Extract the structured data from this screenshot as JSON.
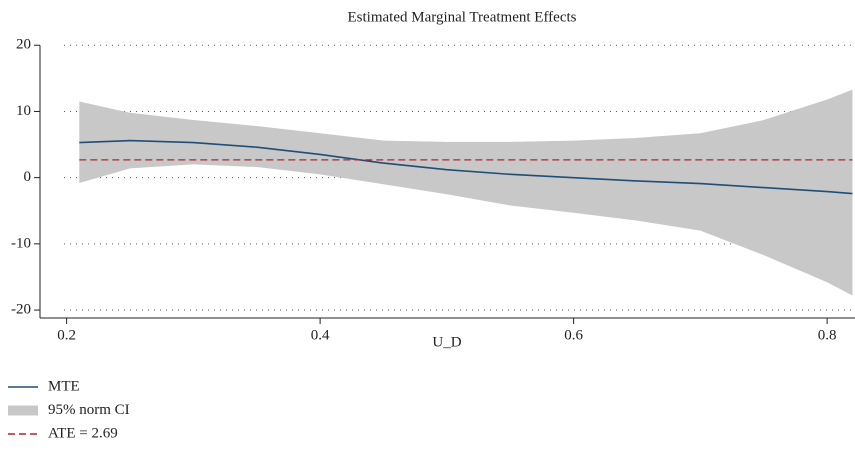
{
  "chart_data": {
    "type": "line",
    "title": "Estimated Marginal Treatment Effects",
    "x_label": "U_D",
    "x": [
      0.21,
      0.25,
      0.3,
      0.35,
      0.4,
      0.45,
      0.5,
      0.55,
      0.6,
      0.65,
      0.7,
      0.75,
      0.8,
      0.82
    ],
    "series": [
      {
        "name": "MTE",
        "color": "#1f4e79",
        "values": [
          5.3,
          5.6,
          5.3,
          4.6,
          3.5,
          2.2,
          1.2,
          0.5,
          0,
          -0.5,
          -0.9,
          -1.5,
          -2.1,
          -2.4
        ]
      },
      {
        "name": "95% norm CI",
        "color": "#c8c8c8",
        "upper": [
          11.5,
          9.8,
          8.7,
          7.8,
          6.7,
          5.6,
          5.4,
          5.4,
          5.6,
          6.0,
          6.7,
          8.7,
          11.8,
          13.3
        ],
        "lower": [
          -0.8,
          1.4,
          2.0,
          1.6,
          0.5,
          -1.0,
          -2.5,
          -4.2,
          -5.3,
          -6.5,
          -8.0,
          -11.7,
          -15.8,
          -17.8
        ]
      },
      {
        "name": "ATE = 2.69",
        "color": "#b22234",
        "value": 2.69,
        "dashed": true
      }
    ],
    "xlim": [
      0.179,
      0.822
    ],
    "ylim": [
      -21.2,
      22
    ],
    "xticks": [
      0.2,
      0.4,
      0.6,
      0.8
    ],
    "yticks": [
      -20,
      -10,
      0,
      10,
      20
    ],
    "grid": true
  }
}
